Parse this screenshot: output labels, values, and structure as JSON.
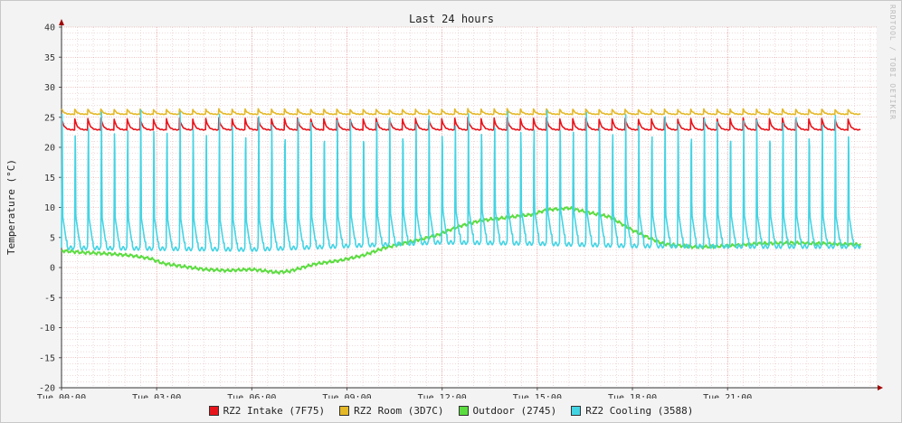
{
  "chart_data": {
    "type": "line",
    "title": "Last 24 hours",
    "ylabel": "Temperature (°C)",
    "watermark": "RRDTOOL / TOBI OETIKER",
    "ylim": [
      -20,
      40
    ],
    "yticks": [
      40,
      35,
      30,
      25,
      20,
      15,
      10,
      5,
      0,
      -5,
      -10,
      -15,
      -20
    ],
    "xlim_hours": [
      0,
      25.7
    ],
    "xticks": [
      {
        "hour": 0,
        "label": "Tue 00:00"
      },
      {
        "hour": 3,
        "label": "Tue 03:00"
      },
      {
        "hour": 6,
        "label": "Tue 06:00"
      },
      {
        "hour": 9,
        "label": "Tue 09:00"
      },
      {
        "hour": 12,
        "label": "Tue 12:00"
      },
      {
        "hour": 15,
        "label": "Tue 15:00"
      },
      {
        "hour": 18,
        "label": "Tue 18:00"
      },
      {
        "hour": 21,
        "label": "Tue 21:00"
      }
    ],
    "grid": true,
    "legend_position": "bottom",
    "series": [
      {
        "name": "RZ2 Intake (7F75)",
        "color": "#e8141b",
        "kind": "cyclic",
        "cycles_per_hour": 2.42,
        "low": 22.9,
        "high": 24.9
      },
      {
        "name": "RZ2 Room (3D7C)",
        "color": "#e4b826",
        "kind": "cyclic",
        "cycles_per_hour": 2.42,
        "low": 25.5,
        "high": 26.4
      },
      {
        "name": "Outdoor (2745)",
        "color": "#5bdc3f",
        "kind": "smooth",
        "points": [
          [
            0,
            2.8
          ],
          [
            0.7,
            2.5
          ],
          [
            1.5,
            2.3
          ],
          [
            2.2,
            2.0
          ],
          [
            2.8,
            1.5
          ],
          [
            3.2,
            0.7
          ],
          [
            3.8,
            0.2
          ],
          [
            4.5,
            -0.3
          ],
          [
            5.2,
            -0.5
          ],
          [
            6.0,
            -0.3
          ],
          [
            6.8,
            -0.8
          ],
          [
            7.2,
            -0.6
          ],
          [
            8.0,
            0.6
          ],
          [
            8.8,
            1.2
          ],
          [
            9.5,
            2.0
          ],
          [
            10.2,
            3.3
          ],
          [
            11.0,
            4.3
          ],
          [
            11.8,
            5.3
          ],
          [
            12.5,
            6.8
          ],
          [
            13.2,
            7.8
          ],
          [
            14.0,
            8.3
          ],
          [
            14.8,
            8.8
          ],
          [
            15.3,
            9.6
          ],
          [
            16.0,
            9.9
          ],
          [
            16.5,
            9.3
          ],
          [
            17.3,
            8.4
          ],
          [
            18.0,
            6.2
          ],
          [
            18.5,
            5.0
          ],
          [
            19.0,
            3.9
          ],
          [
            20.0,
            3.4
          ],
          [
            21.0,
            3.6
          ],
          [
            22.0,
            4.0
          ],
          [
            23.0,
            4.1
          ],
          [
            24.0,
            4.0
          ],
          [
            25.2,
            3.8
          ]
        ]
      },
      {
        "name": "RZ2 Cooling (3588)",
        "color": "#43d4e4",
        "kind": "cyclic",
        "cycles_per_hour": 2.42,
        "high": 26.2,
        "shoulder_low": [
          [
            0,
            4.5
          ],
          [
            6,
            4.0
          ],
          [
            12,
            5.5
          ],
          [
            15,
            5.6
          ],
          [
            18,
            5.0
          ],
          [
            22,
            4.8
          ],
          [
            25.2,
            4.6
          ]
        ],
        "trough": [
          [
            0,
            3.3
          ],
          [
            6,
            3.0
          ],
          [
            12,
            4.2
          ],
          [
            15,
            4.0
          ],
          [
            18,
            3.6
          ],
          [
            22,
            3.5
          ],
          [
            25.2,
            3.5
          ]
        ]
      }
    ]
  }
}
